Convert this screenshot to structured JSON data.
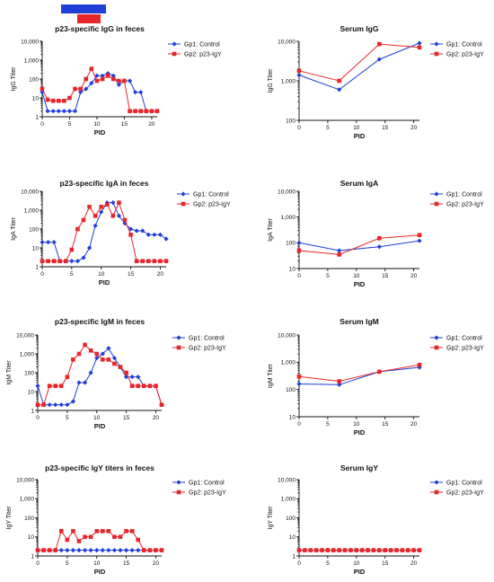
{
  "treatment_bar_colors": {
    "blue": "#1f3fd6",
    "red": "#e5262b"
  },
  "series_styles": {
    "Gp1: Control": "#1f3fd6",
    "Gp2: p23-IgY": "#e5262b"
  },
  "chart_data": [
    {
      "type": "line",
      "title": "p23-specific IgG in feces",
      "xlabel": "PID",
      "ylabel": "IgG Titer",
      "yscale": "log",
      "ylim": [
        1,
        10000
      ],
      "xlim": [
        0,
        21
      ],
      "yticks": [
        "1",
        "10",
        "100",
        "1,000",
        "10,000"
      ],
      "xticks": [
        "0",
        "5",
        "10",
        "15",
        "20"
      ],
      "legend": "top-right",
      "series": [
        {
          "name": "Gp1: Control",
          "x": [
            0,
            1,
            2,
            3,
            4,
            5,
            6,
            7,
            8,
            9,
            10,
            11,
            12,
            13,
            14,
            15,
            16,
            17,
            18,
            19,
            20,
            21
          ],
          "y": [
            20,
            2,
            2,
            2,
            2,
            2,
            2,
            20,
            30,
            60,
            150,
            150,
            200,
            150,
            50,
            80,
            80,
            20,
            20,
            2,
            2,
            2
          ]
        },
        {
          "name": "Gp2: p23-IgY",
          "x": [
            0,
            1,
            2,
            3,
            4,
            5,
            6,
            7,
            8,
            9,
            10,
            11,
            12,
            13,
            14,
            15,
            16,
            17,
            18,
            19,
            20,
            21
          ],
          "y": [
            30,
            8,
            7,
            7,
            7,
            10,
            30,
            30,
            100,
            350,
            80,
            100,
            150,
            100,
            80,
            80,
            2,
            2,
            2,
            2,
            2,
            2
          ]
        }
      ]
    },
    {
      "type": "line",
      "title": "Serum IgG",
      "xlabel": "PID",
      "ylabel": "IgG Titer",
      "yscale": "log",
      "ylim": [
        100,
        10000
      ],
      "xlim": [
        0,
        21
      ],
      "yticks": [
        "100",
        "1,000",
        "10,000"
      ],
      "xticks": [
        "0",
        "5",
        "10",
        "15",
        "20"
      ],
      "legend": "top-right",
      "series": [
        {
          "name": "Gp1: Control",
          "x": [
            0,
            7,
            14,
            21
          ],
          "y": [
            1400,
            600,
            3500,
            9000
          ]
        },
        {
          "name": "Gp2: p23-IgY",
          "x": [
            0,
            7,
            14,
            21
          ],
          "y": [
            1800,
            1000,
            8500,
            7000
          ]
        }
      ]
    },
    {
      "type": "line",
      "title": "p23-specific IgA in feces",
      "xlabel": "PID",
      "ylabel": "IgA Titer",
      "yscale": "log",
      "ylim": [
        1,
        10000
      ],
      "xlim": [
        0,
        21
      ],
      "yticks": [
        "1",
        "10",
        "100",
        "1,000",
        "10,000"
      ],
      "xticks": [
        "0",
        "5",
        "10",
        "15",
        "20"
      ],
      "legend": "top-right",
      "series": [
        {
          "name": "Gp1: Control",
          "x": [
            0,
            1,
            2,
            3,
            4,
            5,
            6,
            7,
            8,
            9,
            10,
            11,
            12,
            13,
            14,
            15,
            16,
            17,
            18,
            19,
            20,
            21
          ],
          "y": [
            20,
            20,
            20,
            2,
            2,
            2,
            2,
            3,
            10,
            150,
            800,
            2500,
            2500,
            500,
            200,
            100,
            80,
            80,
            50,
            50,
            50,
            30
          ]
        },
        {
          "name": "Gp2: p23-IgY",
          "x": [
            0,
            1,
            2,
            3,
            4,
            5,
            6,
            7,
            8,
            9,
            10,
            11,
            12,
            13,
            14,
            15,
            16,
            17,
            18,
            19,
            20,
            21
          ],
          "y": [
            2,
            2,
            2,
            2,
            2,
            8,
            100,
            300,
            1500,
            500,
            1500,
            2000,
            500,
            2500,
            300,
            50,
            2,
            2,
            2,
            2,
            2,
            2
          ]
        }
      ]
    },
    {
      "type": "line",
      "title": "Serum IgA",
      "xlabel": "PID",
      "ylabel": "IgA Titer",
      "yscale": "log",
      "ylim": [
        10,
        10000
      ],
      "xlim": [
        0,
        21
      ],
      "yticks": [
        "10",
        "100",
        "1,000",
        "10,000"
      ],
      "xticks": [
        "0",
        "5",
        "10",
        "15",
        "20"
      ],
      "legend": "top-right",
      "series": [
        {
          "name": "Gp1: Control",
          "x": [
            0,
            7,
            14,
            21
          ],
          "y": [
            100,
            50,
            70,
            120
          ]
        },
        {
          "name": "Gp2: p23-IgY",
          "x": [
            0,
            7,
            14,
            21
          ],
          "y": [
            50,
            35,
            150,
            200
          ]
        }
      ]
    },
    {
      "type": "line",
      "title": "p23-specific IgM in feces",
      "xlabel": "PID",
      "ylabel": "IgM Titer",
      "yscale": "log",
      "ylim": [
        1,
        10000
      ],
      "xlim": [
        0,
        21
      ],
      "yticks": [
        "1",
        "10",
        "100",
        "1,000",
        "10,000"
      ],
      "xticks": [
        "0",
        "5",
        "10",
        "15",
        "20"
      ],
      "legend": "top-right",
      "series": [
        {
          "name": "Gp1: Control",
          "x": [
            0,
            1,
            2,
            3,
            4,
            5,
            6,
            7,
            8,
            9,
            10,
            11,
            12,
            13,
            14,
            15,
            16,
            17,
            18,
            19,
            20,
            21
          ],
          "y": [
            20,
            2,
            2,
            2,
            2,
            2,
            3,
            30,
            30,
            100,
            600,
            1000,
            2000,
            600,
            200,
            60,
            60,
            60,
            20,
            20,
            20,
            2
          ]
        },
        {
          "name": "Gp2: p23-IgY",
          "x": [
            0,
            1,
            2,
            3,
            4,
            5,
            6,
            7,
            8,
            9,
            10,
            11,
            12,
            13,
            14,
            15,
            16,
            17,
            18,
            19,
            20,
            21
          ],
          "y": [
            2,
            2,
            20,
            20,
            20,
            60,
            500,
            1000,
            3000,
            1500,
            1000,
            500,
            500,
            300,
            200,
            100,
            20,
            20,
            20,
            20,
            20,
            2
          ]
        }
      ]
    },
    {
      "type": "line",
      "title": "Serum IgM",
      "xlabel": "PID",
      "ylabel": "IgM Titer",
      "yscale": "log",
      "ylim": [
        10,
        10000
      ],
      "xlim": [
        0,
        21
      ],
      "yticks": [
        "10",
        "100",
        "1,000",
        "10,000"
      ],
      "xticks": [
        "0",
        "5",
        "10",
        "15",
        "20"
      ],
      "legend": "top-right",
      "series": [
        {
          "name": "Gp1: Control",
          "x": [
            0,
            7,
            14,
            21
          ],
          "y": [
            160,
            150,
            450,
            650
          ]
        },
        {
          "name": "Gp2: p23-IgY",
          "x": [
            0,
            7,
            14,
            21
          ],
          "y": [
            300,
            200,
            450,
            800
          ]
        }
      ]
    },
    {
      "type": "line",
      "title": "p23-specific IgY titers in feces",
      "xlabel": "PID",
      "ylabel": "IgY Titer",
      "yscale": "log",
      "ylim": [
        1,
        10000
      ],
      "xlim": [
        0,
        21
      ],
      "yticks": [
        "1",
        "10",
        "100",
        "1,000",
        "10,000"
      ],
      "xticks": [
        "0",
        "5",
        "10",
        "15",
        "20"
      ],
      "legend": "top-right",
      "series": [
        {
          "name": "Gp1: Control",
          "x": [
            0,
            1,
            2,
            3,
            4,
            5,
            6,
            7,
            8,
            9,
            10,
            11,
            12,
            13,
            14,
            15,
            16,
            17,
            18,
            19,
            20,
            21
          ],
          "y": [
            2,
            2,
            2,
            2,
            2,
            2,
            2,
            2,
            2,
            2,
            2,
            2,
            2,
            2,
            2,
            2,
            2,
            2,
            2,
            2,
            2,
            2
          ]
        },
        {
          "name": "Gp2: p23-IgY",
          "x": [
            0,
            1,
            2,
            3,
            4,
            5,
            6,
            7,
            8,
            9,
            10,
            11,
            12,
            13,
            14,
            15,
            16,
            17,
            18,
            19,
            20,
            21
          ],
          "y": [
            2,
            2,
            2,
            2,
            20,
            7,
            20,
            6,
            10,
            10,
            20,
            20,
            20,
            10,
            10,
            20,
            20,
            7,
            2,
            2,
            2,
            2
          ]
        }
      ]
    },
    {
      "type": "line",
      "title": "Serum IgY",
      "xlabel": "PID",
      "ylabel": "IgY Titer",
      "yscale": "log",
      "ylim": [
        1,
        10000
      ],
      "xlim": [
        0,
        21
      ],
      "yticks": [
        "1",
        "10",
        "100",
        "1,000",
        "10,000"
      ],
      "xticks": [
        "0",
        "5",
        "10",
        "15",
        "20"
      ],
      "legend": "top-right",
      "series": [
        {
          "name": "Gp1: Control",
          "x": [
            0,
            1,
            2,
            3,
            4,
            5,
            6,
            7,
            8,
            9,
            10,
            11,
            12,
            13,
            14,
            15,
            16,
            17,
            18,
            19,
            20,
            21
          ],
          "y": [
            2,
            2,
            2,
            2,
            2,
            2,
            2,
            2,
            2,
            2,
            2,
            2,
            2,
            2,
            2,
            2,
            2,
            2,
            2,
            2,
            2,
            2
          ]
        },
        {
          "name": "Gp2: p23-IgY",
          "x": [
            0,
            1,
            2,
            3,
            4,
            5,
            6,
            7,
            8,
            9,
            10,
            11,
            12,
            13,
            14,
            15,
            16,
            17,
            18,
            19,
            20,
            21
          ],
          "y": [
            2,
            2,
            2,
            2,
            2,
            2,
            2,
            2,
            2,
            2,
            2,
            2,
            2,
            2,
            2,
            2,
            2,
            2,
            2,
            2,
            2,
            2
          ]
        }
      ]
    }
  ]
}
